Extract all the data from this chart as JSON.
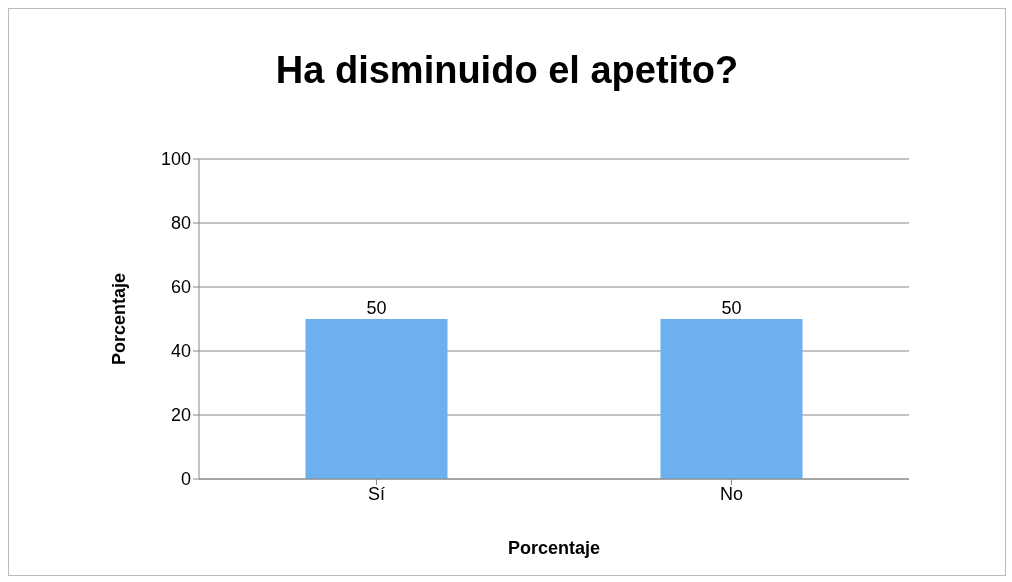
{
  "chart_data": {
    "type": "bar",
    "title": "Ha disminuido el apetito?",
    "xlabel": "Porcentaje",
    "ylabel": "Porcentaje",
    "categories": [
      "Sí",
      "No"
    ],
    "values": [
      50,
      50
    ],
    "color": "#6cb0f0",
    "ylim": [
      0,
      100
    ],
    "yticks": [
      0,
      20,
      40,
      60,
      80,
      100
    ],
    "grid": "y",
    "data_labels": true
  }
}
